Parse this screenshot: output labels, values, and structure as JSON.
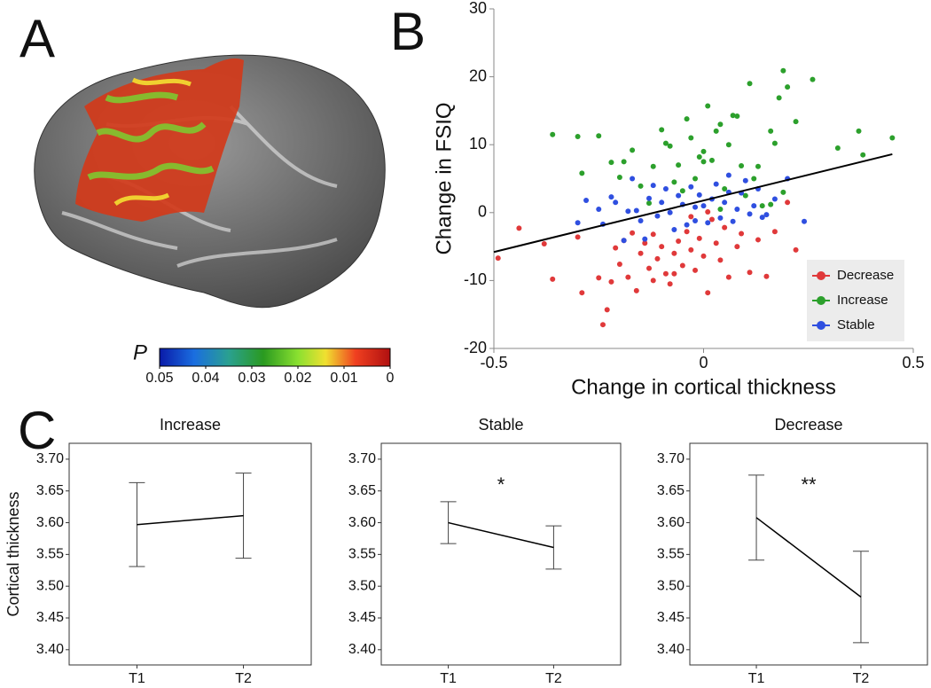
{
  "panel_labels": [
    "A",
    "B",
    "C"
  ],
  "chart_data": [
    {
      "type": "scatter",
      "xlabel": "Change in cortical thickness",
      "ylabel": "Change in FSIQ",
      "xlim": [
        -0.5,
        0.5
      ],
      "ylim": [
        -20,
        30
      ],
      "xticks": [
        -0.5,
        0,
        0.5
      ],
      "yticks": [
        -20,
        -10,
        0,
        10,
        20,
        30
      ],
      "legend": "lower right",
      "series": [
        {
          "name": "Decrease",
          "color": "#e0393a",
          "x": [
            -0.49,
            -0.44,
            -0.38,
            -0.36,
            -0.3,
            -0.29,
            -0.25,
            -0.24,
            -0.23,
            -0.22,
            -0.21,
            -0.2,
            -0.19,
            -0.18,
            -0.17,
            -0.16,
            -0.15,
            -0.14,
            -0.13,
            -0.12,
            -0.11,
            -0.1,
            -0.09,
            -0.08,
            -0.07,
            -0.06,
            -0.05,
            -0.04,
            -0.03,
            -0.02,
            -0.01,
            0,
            0.01,
            0.02,
            0.03,
            0.04,
            0.05,
            0.06,
            0.08,
            0.09,
            0.11,
            0.13,
            0.15,
            0.17,
            0.2,
            0.22,
            -0.07,
            -0.12,
            -0.03,
            0.01
          ],
          "values": [
            -6.7,
            -2.3,
            -4.6,
            -9.8,
            -3.6,
            -11.8,
            -9.6,
            -16.5,
            -14.3,
            -10.2,
            -5.2,
            -7.6,
            -4.1,
            -9.5,
            -3,
            -11.5,
            -6,
            -4.5,
            -8.2,
            -3.2,
            -6.8,
            -5,
            -9,
            -10.5,
            -6,
            -4.2,
            -7.8,
            -2.8,
            -5.5,
            -8.5,
            -3.8,
            -6.4,
            -11.8,
            -1,
            -4.5,
            -7,
            -2.2,
            -9.5,
            -5,
            -3.1,
            -8.8,
            -4,
            -9.4,
            -2.8,
            1.5,
            -5.5,
            -9,
            -10,
            -0.6,
            0.1
          ]
        },
        {
          "name": "Increase",
          "color": "#2ca02c",
          "x": [
            -0.36,
            -0.3,
            -0.29,
            -0.25,
            -0.22,
            -0.2,
            -0.19,
            -0.17,
            -0.15,
            -0.13,
            -0.12,
            -0.1,
            -0.09,
            -0.08,
            -0.06,
            -0.05,
            -0.04,
            -0.03,
            -0.02,
            -0.01,
            0,
            0.01,
            0.02,
            0.03,
            0.04,
            0.05,
            0.06,
            0.07,
            0.08,
            0.09,
            0.1,
            0.11,
            0.12,
            0.13,
            0.14,
            0.16,
            0.17,
            0.18,
            0.19,
            0.2,
            0.22,
            0.26,
            0.32,
            0.37,
            0.38,
            0.45,
            -0.07,
            0,
            0.04,
            0.16,
            0.19
          ],
          "values": [
            11.5,
            11.2,
            5.8,
            11.3,
            7.4,
            5.2,
            7.5,
            9.2,
            3.9,
            1.4,
            6.8,
            12.2,
            10.2,
            9.8,
            7,
            3.2,
            13.8,
            11,
            5,
            8.2,
            9,
            15.7,
            7.7,
            12,
            13,
            3.5,
            10,
            14.3,
            14.2,
            6.9,
            2.5,
            19,
            5,
            6.8,
            1,
            12,
            10.2,
            16.9,
            20.9,
            18.5,
            13.4,
            19.6,
            9.5,
            12,
            8.5,
            11,
            4.5,
            7.5,
            0.5,
            1.2,
            3
          ]
        },
        {
          "name": "Stable",
          "color": "#2f4fe0",
          "x": [
            -0.3,
            -0.28,
            -0.24,
            -0.22,
            -0.21,
            -0.19,
            -0.18,
            -0.17,
            -0.16,
            -0.15,
            -0.14,
            -0.13,
            -0.12,
            -0.11,
            -0.1,
            -0.09,
            -0.08,
            -0.07,
            -0.06,
            -0.05,
            -0.04,
            -0.03,
            -0.02,
            -0.01,
            0,
            0.01,
            0.02,
            0.03,
            0.04,
            0.05,
            0.06,
            0.07,
            0.08,
            0.09,
            0.1,
            0.11,
            0.12,
            0.13,
            0.14,
            0.15,
            0.17,
            0.2,
            0.24,
            -0.25,
            -0.02,
            0.06
          ],
          "values": [
            -1.5,
            1.8,
            -1.7,
            2.3,
            1.5,
            -4.1,
            0.2,
            5,
            0.3,
            -1.2,
            -3.9,
            2.1,
            4,
            -0.5,
            1.5,
            3.5,
            0,
            -2.5,
            2.5,
            1.2,
            -1.8,
            3.8,
            0.8,
            2.6,
            1,
            -1.5,
            2,
            4.2,
            -0.8,
            1.5,
            3,
            -1.3,
            0.5,
            2.9,
            4.7,
            -0.2,
            1,
            3.5,
            -0.7,
            -0.3,
            2,
            5,
            -1.3,
            0.5,
            -1.2,
            5.5
          ]
        }
      ],
      "fit": {
        "color": "#000000",
        "x": [
          -0.5,
          0.45
        ],
        "values": [
          -5.8,
          8.6
        ]
      }
    },
    {
      "type": "line_error",
      "title": "Increase",
      "ylabel": "Cortical thickness",
      "categories": [
        "T1",
        "T2"
      ],
      "values": [
        3.597,
        3.611
      ],
      "errors": [
        0.066,
        0.067
      ],
      "color": "#000000",
      "ylim": [
        3.376,
        3.725
      ],
      "yticks": [
        {
          "value": 3.4,
          "label": "3.40"
        },
        {
          "value": 3.45,
          "label": "3.45"
        },
        {
          "value": 3.5,
          "label": "3.50"
        },
        {
          "value": 3.55,
          "label": "3.55"
        },
        {
          "value": 3.6,
          "label": "3.60"
        },
        {
          "value": 3.65,
          "label": "3.65"
        },
        {
          "value": 3.7,
          "label": "3.70"
        }
      ]
    },
    {
      "type": "line_error",
      "title": "Stable",
      "annotation": "*",
      "categories": [
        "T1",
        "T2"
      ],
      "values": [
        3.6,
        3.561
      ],
      "errors": [
        0.033,
        0.034
      ],
      "color": "#000000",
      "ylim": [
        3.376,
        3.725
      ],
      "yticks": [
        {
          "value": 3.4,
          "label": "3.40"
        },
        {
          "value": 3.45,
          "label": "3.45"
        },
        {
          "value": 3.5,
          "label": "3.50"
        },
        {
          "value": 3.55,
          "label": "3.55"
        },
        {
          "value": 3.6,
          "label": "3.60"
        },
        {
          "value": 3.65,
          "label": "3.65"
        },
        {
          "value": 3.7,
          "label": "3.70"
        }
      ]
    },
    {
      "type": "line_error",
      "title": "Decrease",
      "annotation": "**",
      "categories": [
        "T1",
        "T2"
      ],
      "values": [
        3.608,
        3.483
      ],
      "errors": [
        0.067,
        0.072
      ],
      "color": "#000000",
      "ylim": [
        3.376,
        3.725
      ],
      "yticks": [
        {
          "value": 3.4,
          "label": "3.40"
        },
        {
          "value": 3.45,
          "label": "3.45"
        },
        {
          "value": 3.5,
          "label": "3.50"
        },
        {
          "value": 3.55,
          "label": "3.55"
        },
        {
          "value": 3.6,
          "label": "3.60"
        },
        {
          "value": 3.65,
          "label": "3.65"
        },
        {
          "value": 3.7,
          "label": "3.70"
        }
      ]
    },
    {
      "type": "colorbar",
      "label": "P",
      "xlim": [
        0.05,
        0
      ],
      "xticks": [
        0.05,
        0.04,
        0.03,
        0.02,
        0.01,
        0
      ]
    }
  ]
}
